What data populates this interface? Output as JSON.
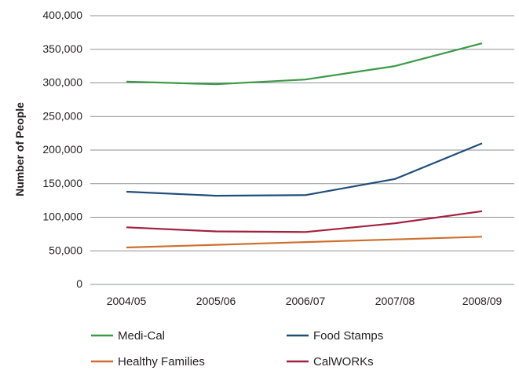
{
  "chart_data": {
    "type": "line",
    "title": "",
    "xlabel": "",
    "ylabel": "Number of People",
    "categories": [
      "2004/05",
      "2005/06",
      "2006/07",
      "2007/08",
      "2008/09"
    ],
    "ylim": [
      0,
      400000
    ],
    "y_ticks": [
      0,
      50000,
      100000,
      150000,
      200000,
      250000,
      300000,
      350000,
      400000
    ],
    "y_tick_labels": [
      "0",
      "50,000",
      "100,000",
      "150,000",
      "200,000",
      "250,000",
      "300,000",
      "350,000",
      "400,000"
    ],
    "grid": "horizontal",
    "legend_position": "bottom",
    "series": [
      {
        "name": "Medi-Cal",
        "color": "#3a9a47",
        "values": [
          302000,
          298000,
          305000,
          325000,
          359000
        ]
      },
      {
        "name": "Food Stamps",
        "color": "#1f4e79",
        "values": [
          138000,
          132000,
          133000,
          157000,
          210000
        ]
      },
      {
        "name": "Healthy Families",
        "color": "#cf6f2e",
        "values": [
          55000,
          59000,
          63000,
          67000,
          71000
        ]
      },
      {
        "name": "CalWORKs",
        "color": "#a3203f",
        "values": [
          85000,
          79000,
          78000,
          91000,
          109000
        ]
      }
    ]
  }
}
